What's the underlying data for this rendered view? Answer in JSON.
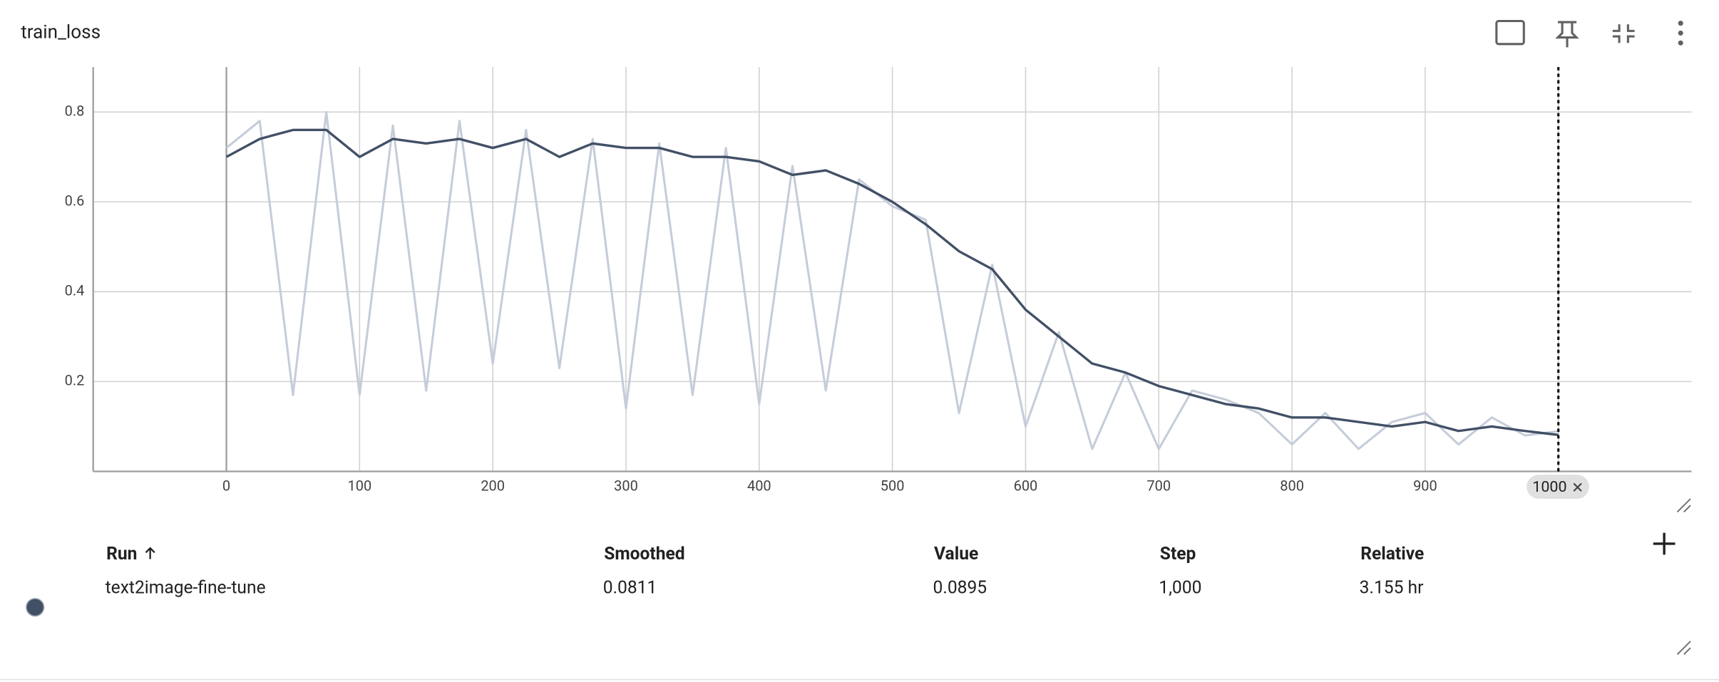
{
  "title": "train_loss",
  "chart_data": {
    "type": "line",
    "x": [
      0,
      25,
      50,
      75,
      100,
      125,
      150,
      175,
      200,
      225,
      250,
      275,
      300,
      325,
      350,
      375,
      400,
      425,
      450,
      475,
      500,
      525,
      550,
      575,
      600,
      625,
      650,
      675,
      700,
      725,
      750,
      775,
      800,
      825,
      850,
      875,
      900,
      925,
      950,
      975,
      1000
    ],
    "series": [
      {
        "name": "text2image-fine-tune",
        "color": "#c5cdda",
        "values": [
          0.72,
          0.78,
          0.17,
          0.8,
          0.17,
          0.77,
          0.18,
          0.78,
          0.24,
          0.76,
          0.23,
          0.74,
          0.14,
          0.73,
          0.17,
          0.72,
          0.15,
          0.68,
          0.18,
          0.65,
          0.59,
          0.56,
          0.13,
          0.46,
          0.1,
          0.31,
          0.05,
          0.22,
          0.05,
          0.18,
          0.16,
          0.13,
          0.06,
          0.13,
          0.05,
          0.11,
          0.13,
          0.06,
          0.12,
          0.08,
          0.0895
        ]
      },
      {
        "name": "text2image-fine-tune",
        "color": "#425066",
        "values": [
          0.7,
          0.74,
          0.76,
          0.76,
          0.7,
          0.74,
          0.73,
          0.74,
          0.72,
          0.74,
          0.7,
          0.73,
          0.72,
          0.72,
          0.7,
          0.7,
          0.69,
          0.66,
          0.67,
          0.64,
          0.6,
          0.55,
          0.49,
          0.45,
          0.36,
          0.3,
          0.24,
          0.22,
          0.19,
          0.17,
          0.15,
          0.14,
          0.12,
          0.12,
          0.11,
          0.1,
          0.11,
          0.09,
          0.1,
          0.09,
          0.0811
        ]
      }
    ],
    "xlim": [
      -100,
      1100
    ],
    "xticks": [
      0,
      100,
      200,
      300,
      400,
      500,
      600,
      700,
      800,
      900,
      1000
    ],
    "ylim": [
      0,
      0.9
    ],
    "yticks": [
      0.2,
      0.4,
      0.6,
      0.8
    ],
    "grid": true,
    "hover_step": 1000
  },
  "table": {
    "headers": [
      "Run",
      "Smoothed",
      "Value",
      "Step",
      "Relative"
    ],
    "rows": [
      [
        "text2image-fine-tune",
        "0.0811",
        "0.0895",
        "1,000",
        "3.155 hr"
      ]
    ]
  }
}
